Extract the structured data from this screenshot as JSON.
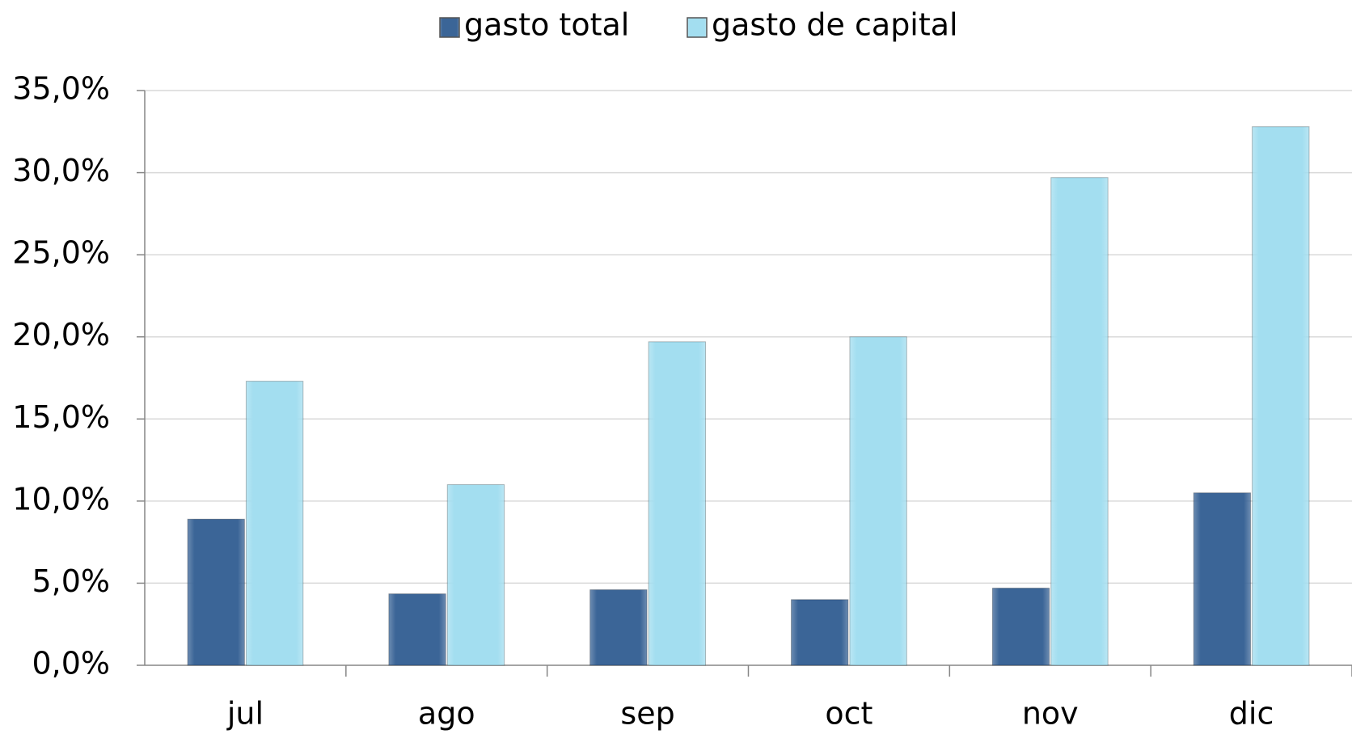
{
  "chart_data": {
    "type": "bar",
    "categories": [
      "jul",
      "ago",
      "sep",
      "oct",
      "nov",
      "dic"
    ],
    "series": [
      {
        "name": "gasto total",
        "color": "#3b6597",
        "values": [
          8.9,
          4.35,
          4.6,
          4.0,
          4.7,
          10.5
        ]
      },
      {
        "name": "gasto de capital",
        "color": "#a3def0",
        "values": [
          17.3,
          11.0,
          19.7,
          20.0,
          29.7,
          32.8
        ]
      }
    ],
    "ylim": [
      0,
      35
    ],
    "yticks": [
      {
        "value": 0,
        "label": "0,0%"
      },
      {
        "value": 5,
        "label": "5,0%"
      },
      {
        "value": 10,
        "label": "10,0%"
      },
      {
        "value": 15,
        "label": "15,0%"
      },
      {
        "value": 20,
        "label": "20,0%"
      },
      {
        "value": 25,
        "label": "25,0%"
      },
      {
        "value": 30,
        "label": "30,0%"
      },
      {
        "value": 35,
        "label": "35,0%"
      }
    ],
    "grid": true,
    "legend": "top"
  }
}
